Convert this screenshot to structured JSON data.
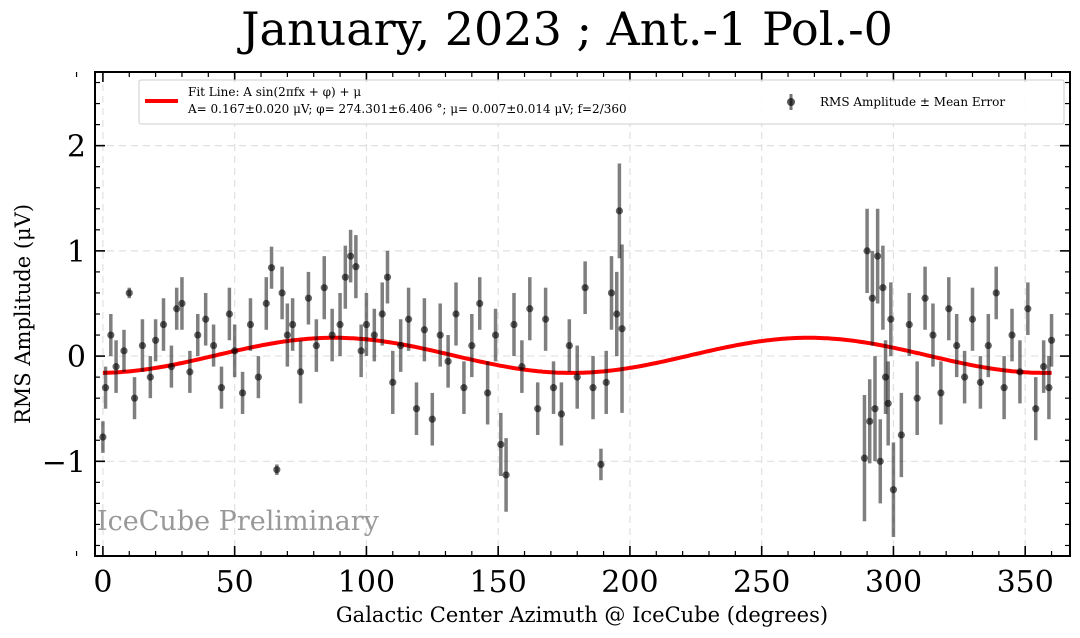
{
  "chart_data": {
    "type": "scatter",
    "title": "January, 2023 ; Ant.-1 Pol.-0",
    "xlabel": "Galactic Center Azimuth @ IceCube (degrees)",
    "ylabel": "RMS Amplitude (μV)",
    "xlim": [
      -3,
      367
    ],
    "ylim": [
      -1.9,
      2.7
    ],
    "xticks": [
      0,
      50,
      100,
      150,
      200,
      250,
      300,
      350
    ],
    "xtick_labels": [
      "0",
      "50",
      "100",
      "150",
      "200",
      "250",
      "300",
      "350"
    ],
    "yticks": [
      -1,
      0,
      1,
      2
    ],
    "ytick_labels": [
      "−1",
      "0",
      "1",
      "2"
    ],
    "grid": true,
    "legend_position": "top",
    "watermark": "IceCube Preliminary",
    "fit": {
      "name": "Fit Line: A sin(2πfx + φ) + μ",
      "params": "A= 0.167±0.020 μV; φ= 274.301±6.406 °; μ= 0.007±0.014 μV; f=2/360",
      "A": 0.167,
      "phi_deg": 274.301,
      "mu": 0.007,
      "f": 0.005556,
      "x_range": [
        0,
        360
      ],
      "color": "#ff0000"
    },
    "series": [
      {
        "name": "RMS Amplitude ± Mean Error",
        "color": "#000000",
        "x": [
          0,
          1,
          3,
          5,
          8,
          10,
          12,
          15,
          18,
          20,
          23,
          26,
          28,
          30,
          33,
          36,
          39,
          42,
          45,
          48,
          50,
          53,
          56,
          59,
          62,
          64,
          66,
          68,
          70,
          72,
          75,
          78,
          81,
          84,
          87,
          90,
          92,
          94,
          96,
          98,
          100,
          103,
          106,
          108,
          110,
          113,
          116,
          119,
          122,
          125,
          128,
          131,
          134,
          137,
          140,
          143,
          146,
          149,
          151,
          153,
          156,
          159,
          162,
          165,
          168,
          171,
          174,
          177,
          180,
          183,
          186,
          189,
          191,
          193,
          195,
          196,
          197,
          289,
          290,
          291,
          292,
          293,
          294,
          295,
          296,
          297,
          298,
          299,
          300,
          303,
          306,
          309,
          312,
          315,
          318,
          321,
          324,
          327,
          330,
          333,
          336,
          339,
          342,
          345,
          348,
          351,
          354,
          357,
          359,
          360
        ],
        "y": [
          -0.77,
          -0.3,
          0.2,
          -0.1,
          0.05,
          0.6,
          -0.4,
          0.1,
          -0.2,
          0.15,
          0.3,
          -0.1,
          0.45,
          0.5,
          -0.15,
          0.2,
          0.35,
          0.1,
          -0.3,
          0.4,
          0.05,
          -0.35,
          0.3,
          -0.2,
          0.5,
          0.84,
          -1.08,
          0.6,
          0.2,
          0.3,
          -0.15,
          0.55,
          0.1,
          0.65,
          0.2,
          0.3,
          0.75,
          0.95,
          0.85,
          0.05,
          0.3,
          0.2,
          0.4,
          0.75,
          -0.25,
          0.1,
          0.35,
          -0.5,
          0.25,
          -0.6,
          0.2,
          -0.05,
          0.4,
          -0.3,
          0.1,
          0.5,
          -0.35,
          0.2,
          -0.84,
          -1.13,
          0.3,
          -0.1,
          0.45,
          -0.5,
          0.35,
          -0.3,
          -0.55,
          0.1,
          -0.2,
          0.65,
          -0.3,
          -1.03,
          -0.25,
          0.6,
          0.4,
          1.38,
          0.26,
          -0.97,
          1.0,
          -0.62,
          0.55,
          -0.5,
          0.95,
          -1.0,
          0.65,
          -0.2,
          -0.45,
          0.35,
          -1.27,
          -0.75,
          0.3,
          -0.4,
          0.55,
          0.2,
          -0.35,
          0.45,
          0.1,
          -0.2,
          0.35,
          -0.25,
          0.1,
          0.6,
          -0.3,
          0.2,
          -0.15,
          0.45,
          -0.5,
          -0.1,
          -0.3,
          0.15
        ],
        "err": [
          0.15,
          0.2,
          0.2,
          0.25,
          0.2,
          0.05,
          0.2,
          0.25,
          0.2,
          0.2,
          0.25,
          0.2,
          0.2,
          0.25,
          0.2,
          0.2,
          0.25,
          0.2,
          0.2,
          0.25,
          0.25,
          0.2,
          0.25,
          0.2,
          0.25,
          0.2,
          0.05,
          0.25,
          0.3,
          0.25,
          0.3,
          0.25,
          0.25,
          0.3,
          0.25,
          0.3,
          0.3,
          0.25,
          0.3,
          0.25,
          0.3,
          0.25,
          0.3,
          0.25,
          0.3,
          0.25,
          0.3,
          0.25,
          0.3,
          0.25,
          0.3,
          0.25,
          0.3,
          0.25,
          0.3,
          0.25,
          0.3,
          0.25,
          0.3,
          0.35,
          0.3,
          0.25,
          0.3,
          0.25,
          0.3,
          0.25,
          0.3,
          0.25,
          0.3,
          0.25,
          0.3,
          0.15,
          0.3,
          0.35,
          0.4,
          0.45,
          0.8,
          0.6,
          0.4,
          0.4,
          0.45,
          0.5,
          0.45,
          0.4,
          0.4,
          0.35,
          0.4,
          0.35,
          0.45,
          0.4,
          0.3,
          0.35,
          0.3,
          0.3,
          0.3,
          0.3,
          0.3,
          0.25,
          0.3,
          0.25,
          0.3,
          0.25,
          0.3,
          0.25,
          0.3,
          0.25,
          0.3,
          0.25,
          0.3,
          0.25
        ]
      }
    ]
  }
}
